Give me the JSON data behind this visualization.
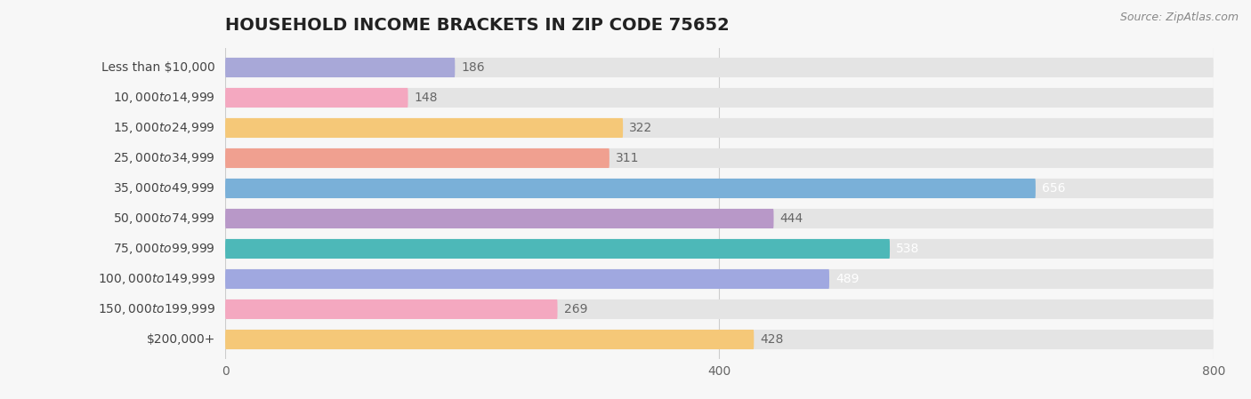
{
  "title": "HOUSEHOLD INCOME BRACKETS IN ZIP CODE 75652",
  "source": "Source: ZipAtlas.com",
  "categories": [
    "Less than $10,000",
    "$10,000 to $14,999",
    "$15,000 to $24,999",
    "$25,000 to $34,999",
    "$35,000 to $49,999",
    "$50,000 to $74,999",
    "$75,000 to $99,999",
    "$100,000 to $149,999",
    "$150,000 to $199,999",
    "$200,000+"
  ],
  "values": [
    186,
    148,
    322,
    311,
    656,
    444,
    538,
    489,
    269,
    428
  ],
  "bar_colors": [
    "#a8a8d8",
    "#f4a8c0",
    "#f5c878",
    "#f0a090",
    "#7ab0d8",
    "#b898c8",
    "#4db8b8",
    "#a0a8e0",
    "#f4a8c0",
    "#f5c878"
  ],
  "label_colors": [
    "#666666",
    "#666666",
    "#666666",
    "#666666",
    "#ffffff",
    "#666666",
    "#ffffff",
    "#ffffff",
    "#666666",
    "#666666"
  ],
  "xlim": [
    0,
    800
  ],
  "xticks": [
    0,
    400,
    800
  ],
  "background_color": "#f7f7f7",
  "bar_bg_color": "#e4e4e4",
  "title_fontsize": 14,
  "source_fontsize": 9,
  "label_fontsize": 10,
  "category_fontsize": 10
}
